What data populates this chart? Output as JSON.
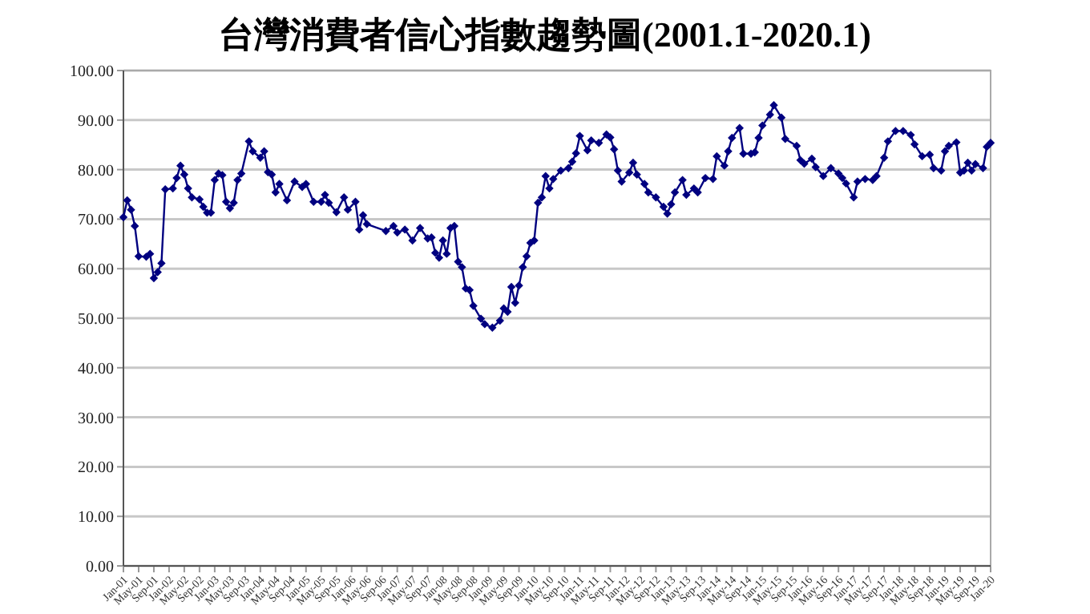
{
  "chart_data": {
    "type": "line",
    "title": "台灣消費者信心指數趨勢圖(2001.1-2020.1)",
    "x": [
      "2001-01",
      "2001-02",
      "2001-03",
      "2001-04",
      "2001-05",
      "2001-07",
      "2001-08",
      "2001-09",
      "2001-10",
      "2001-11",
      "2001-12",
      "2002-02",
      "2002-03",
      "2002-04",
      "2002-05",
      "2002-06",
      "2002-07",
      "2002-09",
      "2002-10",
      "2002-11",
      "2002-12",
      "2003-01",
      "2003-02",
      "2003-03",
      "2003-04",
      "2003-05",
      "2003-06",
      "2003-07",
      "2003-08",
      "2003-10",
      "2003-11",
      "2004-01",
      "2004-02",
      "2004-03",
      "2004-04",
      "2004-05",
      "2004-06",
      "2004-08",
      "2004-10",
      "2004-12",
      "2005-01",
      "2005-03",
      "2005-05",
      "2005-06",
      "2005-07",
      "2005-09",
      "2005-11",
      "2005-12",
      "2006-02",
      "2006-03",
      "2006-04",
      "2006-05",
      "2006-10",
      "2006-12",
      "2007-01",
      "2007-03",
      "2007-05",
      "2007-07",
      "2007-09",
      "2007-10",
      "2007-11",
      "2007-12",
      "2008-01",
      "2008-02",
      "2008-03",
      "2008-04",
      "2008-05",
      "2008-06",
      "2008-07",
      "2008-08",
      "2008-09",
      "2008-11",
      "2008-12",
      "2009-02",
      "2009-04",
      "2009-05",
      "2009-06",
      "2009-07",
      "2009-08",
      "2009-09",
      "2009-10",
      "2009-11",
      "2009-12",
      "2010-01",
      "2010-02",
      "2010-03",
      "2010-04",
      "2010-05",
      "2010-06",
      "2010-08",
      "2010-10",
      "2010-11",
      "2010-12",
      "2011-01",
      "2011-03",
      "2011-04",
      "2011-06",
      "2011-08",
      "2011-09",
      "2011-10",
      "2011-11",
      "2011-12",
      "2012-02",
      "2012-03",
      "2012-04",
      "2012-06",
      "2012-07",
      "2012-09",
      "2012-11",
      "2012-12",
      "2013-01",
      "2013-02",
      "2013-04",
      "2013-05",
      "2013-07",
      "2013-08",
      "2013-10",
      "2013-12",
      "2014-01",
      "2014-03",
      "2014-04",
      "2014-05",
      "2014-07",
      "2014-08",
      "2014-10",
      "2014-11",
      "2014-12",
      "2015-01",
      "2015-03",
      "2015-04",
      "2015-06",
      "2015-07",
      "2015-10",
      "2015-11",
      "2015-12",
      "2016-02",
      "2016-03",
      "2016-05",
      "2016-07",
      "2016-09",
      "2016-10",
      "2016-11",
      "2017-01",
      "2017-02",
      "2017-04",
      "2017-06",
      "2017-07",
      "2017-09",
      "2017-10",
      "2017-12",
      "2018-02",
      "2018-04",
      "2018-05",
      "2018-07",
      "2018-09",
      "2018-10",
      "2018-12",
      "2019-01",
      "2019-02",
      "2019-04",
      "2019-05",
      "2019-06",
      "2019-07",
      "2019-08",
      "2019-09",
      "2019-11",
      "2019-12",
      "2020-01"
    ],
    "series": [
      {
        "color": "#000080",
        "values": [
          70.4,
          73.8,
          71.9,
          68.6,
          62.5,
          62.4,
          63,
          58.1,
          59.3,
          61.1,
          76,
          76.2,
          78.3,
          80.8,
          79,
          76.2,
          74.4,
          74,
          72.5,
          71.3,
          71.3,
          77.9,
          79.2,
          78.9,
          73.5,
          72.2,
          73.3,
          77.9,
          79.2,
          85.7,
          83.7,
          82.4,
          83.7,
          79.5,
          79,
          75.4,
          77.1,
          73.8,
          77.6,
          76.5,
          77.1,
          73.5,
          73.5,
          74.9,
          73.3,
          71.4,
          74.4,
          71.9,
          73.5,
          67.9,
          70.8,
          69,
          67.6,
          68.6,
          67.3,
          67.9,
          65.7,
          68.2,
          66.1,
          66.3,
          63.2,
          62.2,
          65.7,
          63,
          68.2,
          68.6,
          61.4,
          60.3,
          56,
          55.7,
          52.5,
          49.9,
          48.8,
          48.1,
          49.5,
          52,
          51.3,
          56.3,
          53.1,
          56.6,
          60.3,
          62.5,
          65.2,
          65.7,
          73.3,
          74.4,
          78.7,
          76.2,
          78.1,
          79.8,
          80.3,
          81.6,
          83.3,
          86.8,
          83.9,
          85.9,
          85.4,
          87.1,
          86.5,
          84.1,
          79.8,
          77.6,
          79.4,
          81.4,
          79,
          77.1,
          75.4,
          74.4,
          72.5,
          71.1,
          73,
          75.4,
          77.9,
          74.9,
          76.2,
          75.4,
          78.3,
          78.1,
          82.7,
          80.8,
          83.7,
          86.4,
          88.4,
          83.2,
          83.2,
          83.5,
          86.4,
          88.9,
          91.1,
          93,
          90.5,
          86.2,
          84.8,
          81.9,
          81.2,
          82.2,
          80.5,
          78.7,
          80.3,
          79.2,
          78.3,
          77.2,
          74.4,
          77.6,
          78.1,
          77.9,
          78.7,
          82.4,
          85.7,
          87.8,
          87.8,
          87,
          85.1,
          82.7,
          83,
          80.3,
          79.8,
          83.7,
          84.8,
          85.5,
          79.4,
          79.8,
          81.4,
          79.8,
          81.1,
          80.3,
          84.6,
          85.4
        ]
      }
    ],
    "xlim": [
      "2001-01",
      "2020-01"
    ],
    "xticks": [
      {
        "value": "2001-01",
        "label": "Jan-01"
      },
      {
        "value": "2001-05",
        "label": "May-01"
      },
      {
        "value": "2001-09",
        "label": "Sep-01"
      },
      {
        "value": "2002-01",
        "label": "Jan-02"
      },
      {
        "value": "2002-05",
        "label": "May-02"
      },
      {
        "value": "2002-09",
        "label": "Sep-02"
      },
      {
        "value": "2003-01",
        "label": "Jan-03"
      },
      {
        "value": "2003-05",
        "label": "May-03"
      },
      {
        "value": "2003-09",
        "label": "Sep-03"
      },
      {
        "value": "2004-01",
        "label": "Jan-04"
      },
      {
        "value": "2004-05",
        "label": "May-04"
      },
      {
        "value": "2004-09",
        "label": "Sep-04"
      },
      {
        "value": "2005-01",
        "label": "Jan-05"
      },
      {
        "value": "2005-05",
        "label": "May-05"
      },
      {
        "value": "2005-09",
        "label": "Sep-05"
      },
      {
        "value": "2006-01",
        "label": "Jan-06"
      },
      {
        "value": "2006-05",
        "label": "May-06"
      },
      {
        "value": "2006-09",
        "label": "Sep-06"
      },
      {
        "value": "2007-01",
        "label": "Jan-07"
      },
      {
        "value": "2007-05",
        "label": "May-07"
      },
      {
        "value": "2007-09",
        "label": "Sep-07"
      },
      {
        "value": "2008-01",
        "label": "Jan-08"
      },
      {
        "value": "2008-05",
        "label": "May-08"
      },
      {
        "value": "2008-09",
        "label": "Sep-08"
      },
      {
        "value": "2009-01",
        "label": "Jan-09"
      },
      {
        "value": "2009-05",
        "label": "May-09"
      },
      {
        "value": "2009-09",
        "label": "Sep-09"
      },
      {
        "value": "2010-01",
        "label": "Jan-10"
      },
      {
        "value": "2010-05",
        "label": "May-10"
      },
      {
        "value": "2010-09",
        "label": "Sep-10"
      },
      {
        "value": "2011-01",
        "label": "Jan-11"
      },
      {
        "value": "2011-05",
        "label": "May-11"
      },
      {
        "value": "2011-09",
        "label": "Sep-11"
      },
      {
        "value": "2012-01",
        "label": "Jan-12"
      },
      {
        "value": "2012-05",
        "label": "May-12"
      },
      {
        "value": "2012-09",
        "label": "Sep-12"
      },
      {
        "value": "2013-01",
        "label": "Jan-13"
      },
      {
        "value": "2013-05",
        "label": "May-13"
      },
      {
        "value": "2013-09",
        "label": "Sep-13"
      },
      {
        "value": "2014-01",
        "label": "Jan-14"
      },
      {
        "value": "2014-05",
        "label": "May-14"
      },
      {
        "value": "2014-09",
        "label": "Sep-14"
      },
      {
        "value": "2015-01",
        "label": "Jan-15"
      },
      {
        "value": "2015-05",
        "label": "May-15"
      },
      {
        "value": "2015-09",
        "label": "Sep-15"
      },
      {
        "value": "2016-01",
        "label": "Jan-16"
      },
      {
        "value": "2016-05",
        "label": "May-16"
      },
      {
        "value": "2016-09",
        "label": "Sep-16"
      },
      {
        "value": "2017-01",
        "label": "Jan-17"
      },
      {
        "value": "2017-05",
        "label": "May-17"
      },
      {
        "value": "2017-09",
        "label": "Sep-17"
      },
      {
        "value": "2018-01",
        "label": "Jan-18"
      },
      {
        "value": "2018-05",
        "label": "May-18"
      },
      {
        "value": "2018-09",
        "label": "Sep-18"
      },
      {
        "value": "2019-01",
        "label": "Jan-19"
      },
      {
        "value": "2019-05",
        "label": "May-19"
      },
      {
        "value": "2019-09",
        "label": "Sep-19"
      },
      {
        "value": "2020-01",
        "label": "Jan-20"
      }
    ],
    "ylim": [
      0,
      100
    ],
    "yticks": [
      {
        "value": 0,
        "label": "0.00"
      },
      {
        "value": 10,
        "label": "10.00"
      },
      {
        "value": 20,
        "label": "20.00"
      },
      {
        "value": 30,
        "label": "30.00"
      },
      {
        "value": 40,
        "label": "40.00"
      },
      {
        "value": 50,
        "label": "50.00"
      },
      {
        "value": 60,
        "label": "60.00"
      },
      {
        "value": 70,
        "label": "70.00"
      },
      {
        "value": 80,
        "label": "80.00"
      },
      {
        "value": 90,
        "label": "90.00"
      },
      {
        "value": 100,
        "label": "100.00"
      }
    ],
    "grid": "y",
    "marker": "diamond",
    "line_style": "solid"
  }
}
